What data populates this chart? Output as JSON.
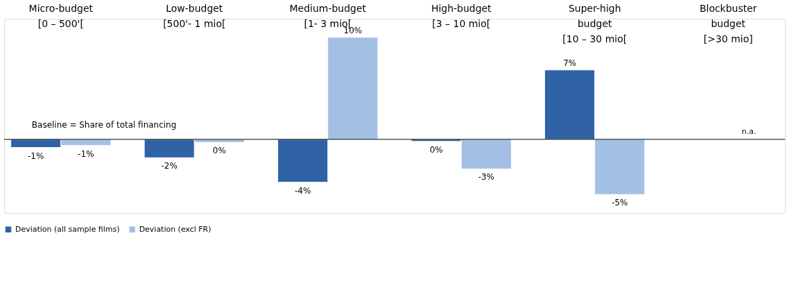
{
  "chart_data": {
    "type": "bar",
    "categories": [
      "Micro-budget\n[0 – 500'[",
      "Low-budget\n[500'- 1 mio[",
      "Medium-budget\n[1- 3 mio[",
      "High-budget\n[3 – 10 mio[",
      "Super-high\nbudget\n[10 – 30 mio[",
      "Blockbuster\nbudget\n[>30 mio]"
    ],
    "series": [
      {
        "name": "Deviation (all sample films)",
        "color": "#2f63a6",
        "values": [
          -0.8,
          -1.8,
          -4.2,
          -0.2,
          6.8,
          null
        ],
        "value_labels": [
          "-1%",
          "-2%",
          "-4%",
          "0%",
          "7%",
          null
        ]
      },
      {
        "name": "Deviation (excl FR)",
        "color": "#a3bfe3",
        "values": [
          -0.6,
          -0.3,
          10,
          -2.9,
          -5.4,
          null
        ],
        "value_labels": [
          "-1%",
          "0%",
          "10%",
          "-3%",
          "-5%",
          null
        ]
      }
    ],
    "ref_lines": [
      {
        "axis": "y",
        "value": 0,
        "label": "Baseline = Share of total financing",
        "color": "#000000"
      }
    ],
    "annotations": [
      "n.a."
    ],
    "legend": "bottom"
  }
}
